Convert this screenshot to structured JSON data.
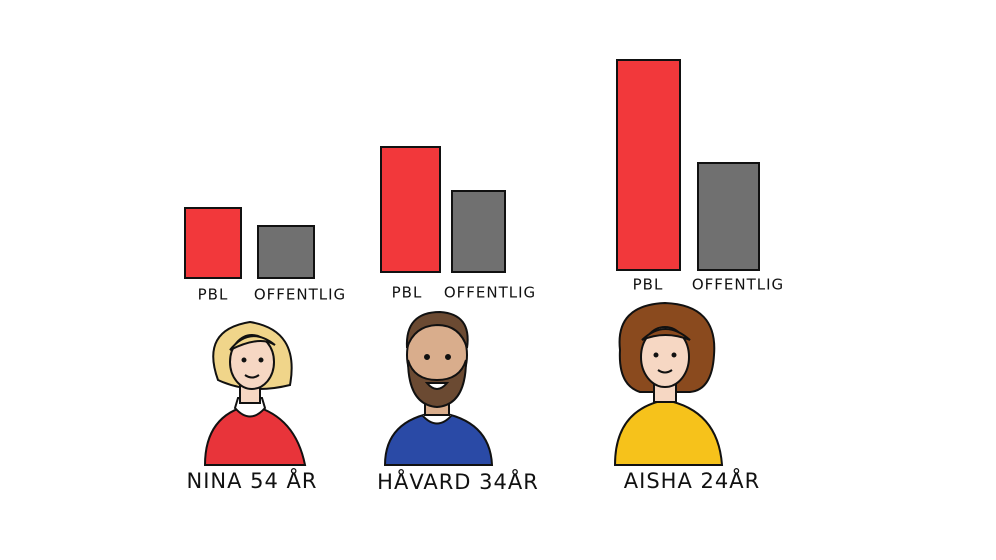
{
  "chart_data": [
    {
      "type": "bar",
      "title": "NINA 54 ÅR",
      "categories": [
        "PBL",
        "OFFENTLIG"
      ],
      "values": [
        70,
        52
      ],
      "colors": [
        "#f2383b",
        "#707070"
      ]
    },
    {
      "type": "bar",
      "title": "HÅVARD 34ÅR",
      "categories": [
        "PBL",
        "OFFENTLIG"
      ],
      "values": [
        125,
        81
      ],
      "colors": [
        "#f2383b",
        "#707070"
      ]
    },
    {
      "type": "bar",
      "title": "AISHA 24ÅR",
      "categories": [
        "PBL",
        "OFFENTLIG"
      ],
      "values": [
        210,
        107
      ],
      "colors": [
        "#f2383b",
        "#707070"
      ]
    }
  ]
}
